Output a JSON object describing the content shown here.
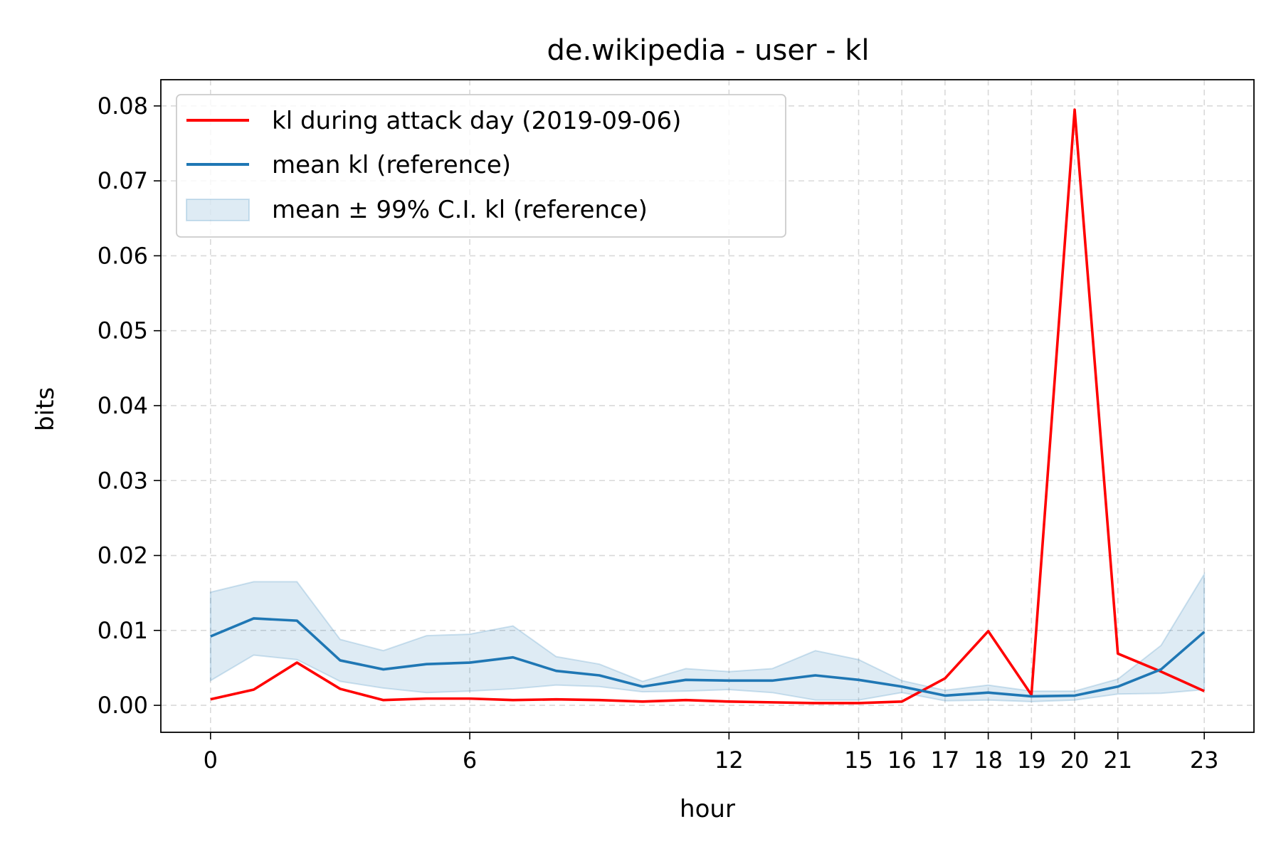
{
  "chart_data": {
    "type": "line",
    "title": "de.wikipedia - user - kl",
    "xlabel": "hour",
    "ylabel": "bits",
    "xlim": [
      -1.15,
      24.15
    ],
    "ylim": [
      -0.0036,
      0.0835
    ],
    "x_ticks": [
      0,
      6,
      12,
      15,
      16,
      17,
      18,
      19,
      20,
      21,
      23
    ],
    "y_ticks": [
      0.0,
      0.01,
      0.02,
      0.03,
      0.04,
      0.05,
      0.06,
      0.07,
      0.08
    ],
    "y_tick_labels": [
      "0.00",
      "0.01",
      "0.02",
      "0.03",
      "0.04",
      "0.05",
      "0.06",
      "0.07",
      "0.08"
    ],
    "grid": true,
    "legend_position": "top-left",
    "x": [
      0,
      1,
      2,
      3,
      4,
      5,
      6,
      7,
      8,
      9,
      10,
      11,
      12,
      13,
      14,
      15,
      16,
      17,
      18,
      19,
      20,
      21,
      22,
      23
    ],
    "series": [
      {
        "name": "kl during attack day (2019-09-06)",
        "kind": "line",
        "color": "#ff0000",
        "values": [
          0.0008,
          0.0021,
          0.0057,
          0.0022,
          0.0007,
          0.0009,
          0.0009,
          0.0007,
          0.0008,
          0.0007,
          0.0005,
          0.0007,
          0.0005,
          0.0004,
          0.0003,
          0.0003,
          0.0005,
          0.0036,
          0.0099,
          0.0014,
          0.0795,
          0.0069,
          0.0045,
          0.0019
        ]
      },
      {
        "name": "mean kl (reference)",
        "kind": "line",
        "color": "#1f77b4",
        "values": [
          0.0092,
          0.0116,
          0.0113,
          0.006,
          0.0048,
          0.0055,
          0.0057,
          0.0064,
          0.0046,
          0.004,
          0.0025,
          0.0034,
          0.0033,
          0.0033,
          0.004,
          0.0034,
          0.0025,
          0.0013,
          0.0017,
          0.0012,
          0.0013,
          0.0025,
          0.0048,
          0.0098
        ]
      },
      {
        "name": "mean ± 99% C.I. kl (reference)",
        "kind": "band",
        "color": "#1f77b4",
        "upper": [
          0.0151,
          0.0165,
          0.0165,
          0.0088,
          0.0073,
          0.0093,
          0.0095,
          0.0106,
          0.0065,
          0.0055,
          0.0032,
          0.0049,
          0.0045,
          0.0049,
          0.0073,
          0.0061,
          0.0033,
          0.002,
          0.0027,
          0.0019,
          0.0019,
          0.0035,
          0.008,
          0.0175
        ],
        "lower": [
          0.0033,
          0.0067,
          0.0061,
          0.0032,
          0.0023,
          0.0017,
          0.0019,
          0.0022,
          0.0027,
          0.0025,
          0.0018,
          0.0019,
          0.0021,
          0.0017,
          0.0007,
          0.0007,
          0.0017,
          0.0006,
          0.0007,
          0.0005,
          0.0007,
          0.0015,
          0.0016,
          0.0021
        ]
      }
    ]
  }
}
